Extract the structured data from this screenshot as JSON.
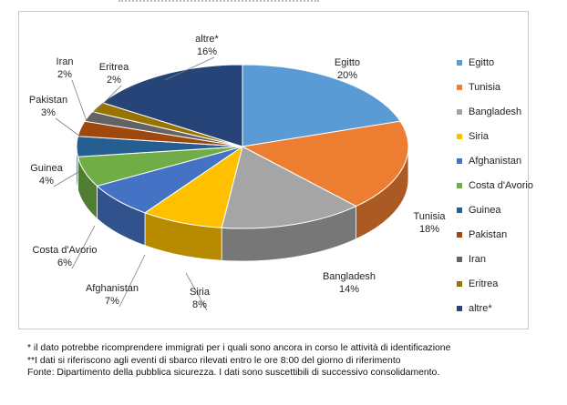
{
  "chart_data": {
    "type": "pie",
    "title": "",
    "slices": [
      {
        "label": "Egitto",
        "value": 20,
        "value_label": "20%",
        "color": "#5b9bd5"
      },
      {
        "label": "Tunisia",
        "value": 18,
        "value_label": "18%",
        "color": "#ed7d31"
      },
      {
        "label": "Bangladesh",
        "value": 14,
        "value_label": "14%",
        "color": "#a5a5a5"
      },
      {
        "label": "Siria",
        "value": 8,
        "value_label": "8%",
        "color": "#ffc000"
      },
      {
        "label": "Afghanistan",
        "value": 7,
        "value_label": "7%",
        "color": "#4472c4"
      },
      {
        "label": "Costa d'Avorio",
        "value": 6,
        "value_label": "6%",
        "color": "#70ad47"
      },
      {
        "label": "Guinea",
        "value": 4,
        "value_label": "4%",
        "color": "#255e91"
      },
      {
        "label": "Pakistan",
        "value": 3,
        "value_label": "3%",
        "color": "#9e480e"
      },
      {
        "label": "Iran",
        "value": 2,
        "value_label": "2%",
        "color": "#636363"
      },
      {
        "label": "Eritrea",
        "value": 2,
        "value_label": "2%",
        "color": "#997300"
      },
      {
        "label": "altre*",
        "value": 16,
        "value_label": "16%",
        "color": "#264478"
      }
    ],
    "legend_placement": "right",
    "style": "3d"
  },
  "legend": {
    "items": [
      "Egitto",
      "Tunisia",
      "Bangladesh",
      "Siria",
      "Afghanistan",
      "Costa d'Avorio",
      "Guinea",
      "Pakistan",
      "Iran",
      "Eritrea",
      "altre*"
    ]
  },
  "footnotes": {
    "line1": "* il dato potrebbe ricomprendere immigrati per i quali sono ancora in corso le attività di identificazione",
    "line2": "**I dati si riferiscono agli eventi di sbarco rilevati entro le ore 8:00 del giorno di riferimento",
    "line3": "Fonte: Dipartimento della pubblica sicurezza. I dati sono suscettibili di successivo consolidamento."
  }
}
